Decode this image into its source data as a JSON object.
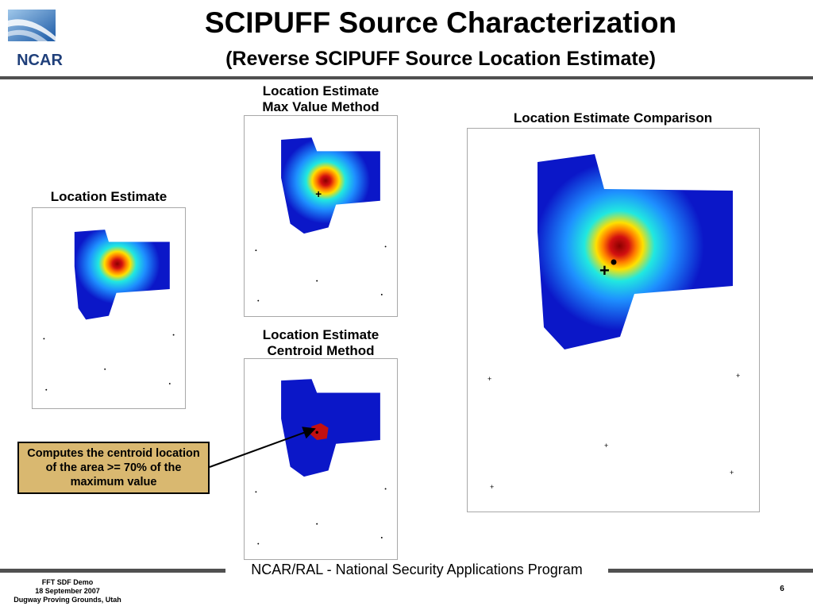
{
  "logo": {
    "text": "NCAR"
  },
  "slide": {
    "title": "SCIPUFF Source Characterization",
    "subtitle": "(Reverse SCIPUFF Source Location Estimate)"
  },
  "panels": {
    "location_estimate": {
      "title": "Location Estimate"
    },
    "max_value": {
      "title_line1": "Location Estimate",
      "title_line2": "Max Value Method"
    },
    "centroid": {
      "title_line1": "Location Estimate",
      "title_line2": "Centroid Method"
    },
    "comparison": {
      "title": "Location Estimate Comparison"
    }
  },
  "callout": {
    "text": "Computes the centroid location of the area >= 70% of the maximum value"
  },
  "footer": {
    "program": "NCAR/RAL - National Security Applications Program",
    "demo_line1": "FFT SDF Demo",
    "demo_line2": "18 September 2007",
    "demo_line3": "Dugway Proving Grounds, Utah",
    "page_number": "6"
  },
  "colors": {
    "plume_blue": "#0b17c8",
    "plume_hot": "#cc1010",
    "callout_bg": "#d9b870",
    "rule": "#505050"
  }
}
